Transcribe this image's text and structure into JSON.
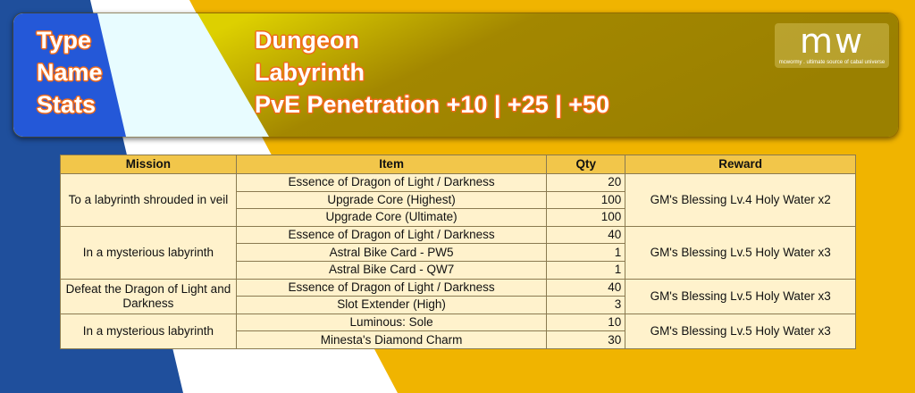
{
  "banner": {
    "rows": [
      {
        "label": "Type",
        "value": "Dungeon"
      },
      {
        "label": "Name",
        "value": "Labyrinth"
      },
      {
        "label": "Stats",
        "value": "PvE Penetration +10 |  +25 |  +50"
      }
    ],
    "logo": {
      "mark": "mw",
      "tagline": "mcwormy . ultimate source of cabal universe"
    }
  },
  "colors": {
    "blue": "#1f4f9c",
    "yellow": "#f0b400",
    "header": "#f2c64a",
    "cell": "#fff2cc"
  },
  "table": {
    "headers": [
      "Mission",
      "Item",
      "Qty",
      "Reward"
    ],
    "groups": [
      {
        "mission": "To a labyrinth shrouded in veil",
        "reward": "GM's Blessing Lv.4 Holy Water x2",
        "items": [
          {
            "name": "Essence of Dragon of Light / Darkness",
            "qty": "20"
          },
          {
            "name": "Upgrade Core (Highest)",
            "qty": "100"
          },
          {
            "name": "Upgrade Core (Ultimate)",
            "qty": "100"
          }
        ]
      },
      {
        "mission": "In a mysterious labyrinth",
        "reward": "GM's Blessing Lv.5 Holy Water x3",
        "items": [
          {
            "name": "Essence of Dragon of Light / Darkness",
            "qty": "40"
          },
          {
            "name": "Astral Bike Card - PW5",
            "qty": "1"
          },
          {
            "name": "Astral Bike Card - QW7",
            "qty": "1"
          }
        ]
      },
      {
        "mission": "Defeat the Dragon of Light and Darkness",
        "reward": "GM's Blessing Lv.5 Holy Water x3",
        "items": [
          {
            "name": "Essence of Dragon of Light / Darkness",
            "qty": "40"
          },
          {
            "name": "Slot Extender (High)",
            "qty": "3"
          }
        ]
      },
      {
        "mission": "In a mysterious labyrinth",
        "reward": "GM's Blessing Lv.5 Holy Water x3",
        "items": [
          {
            "name": "Luminous: Sole",
            "qty": "10"
          },
          {
            "name": "Minesta's Diamond Charm",
            "qty": "30"
          }
        ]
      }
    ]
  }
}
